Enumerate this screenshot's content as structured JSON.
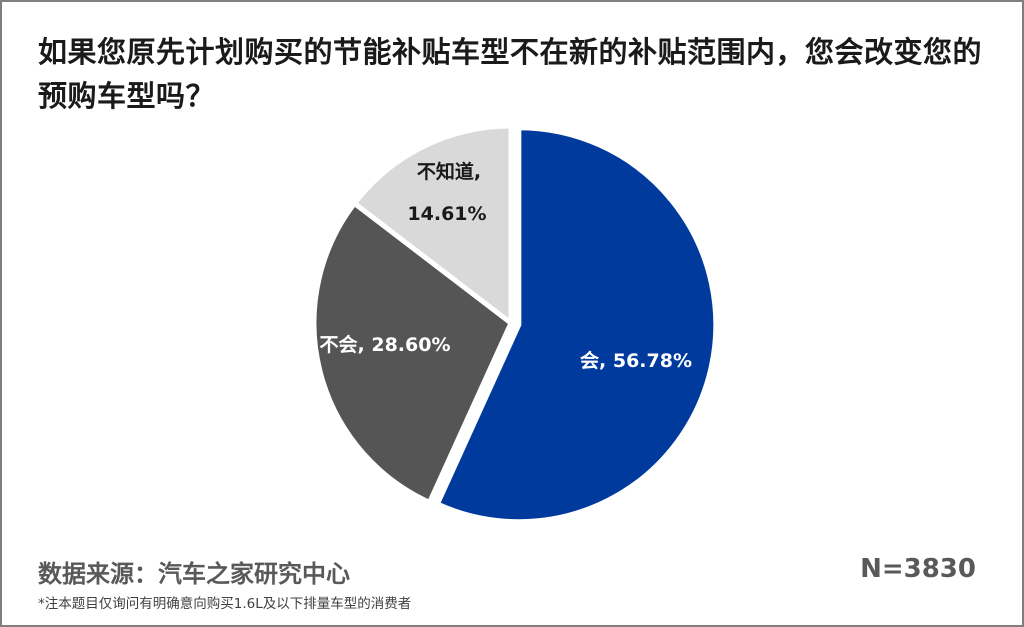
{
  "title": "如果您原先计划购买的节能补贴车型不在新的补贴范围内，您会改变您的预购车型吗？",
  "source": "数据来源：汽车之家研究中心",
  "note": "*注本题目仅询问有明确意向购买1.6L及以下排量车型的消费者",
  "sample_size": "N=3830",
  "colors": {
    "会": "#003a9d",
    "不会": "#555555",
    "不知道": "#d9d9d9"
  },
  "chart_data": {
    "type": "pie",
    "title": "如果您原先计划购买的节能补贴车型不在新的补贴范围内，您会改变您的预购车型吗？",
    "slices": [
      {
        "label": "会",
        "value": 56.78,
        "display": "会, 56.78%",
        "color": "#003a9d"
      },
      {
        "label": "不会",
        "value": 28.6,
        "display": "不会, 28.60%",
        "color": "#555555"
      },
      {
        "label": "不知道",
        "value": 14.61,
        "display_line1": "不知道,",
        "display_line2": "14.61%",
        "color": "#d9d9d9"
      }
    ],
    "legend": "none"
  }
}
